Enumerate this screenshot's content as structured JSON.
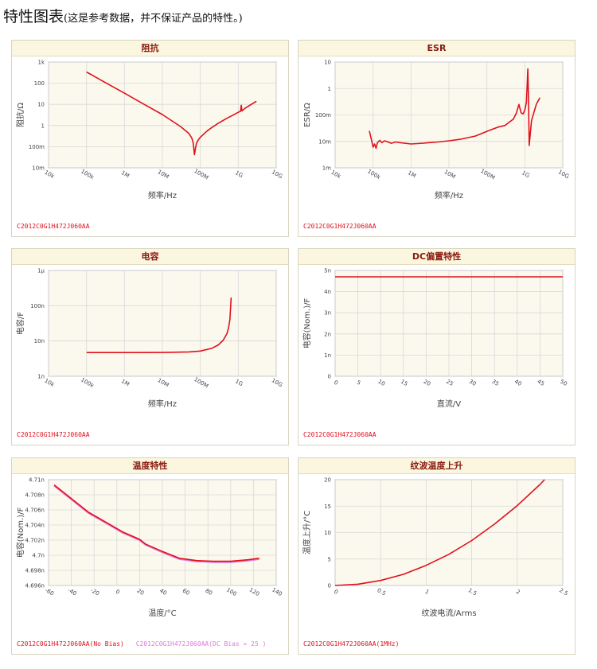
{
  "page": {
    "title": "特性图表",
    "subtitle": "(这是参考数据，并不保证产品的特性。)"
  },
  "colors": {
    "red": "#e0111b",
    "pink": "#e07ad9",
    "grid": "#d8d8d8",
    "plot_bg": "#fbf9ee"
  },
  "chart_data": [
    {
      "type": "line",
      "title": "阻抗",
      "xlabel": "频率/Hz",
      "ylabel": "阻抗/Ω",
      "xscale": "log",
      "yscale": "log",
      "xlim": [
        10000,
        10000000000
      ],
      "ylim": [
        0.01,
        1000
      ],
      "x_ticks": [
        10000,
        100000,
        1000000,
        10000000,
        100000000,
        1000000000,
        10000000000
      ],
      "x_tick_labels": [
        "10k",
        "100k",
        "1M",
        "10M",
        "100M",
        "1G",
        "10G"
      ],
      "y_ticks": [
        0.01,
        0.1,
        1,
        10,
        100,
        1000
      ],
      "y_tick_labels": [
        "10m",
        "100m",
        "1",
        "10",
        "100",
        "1k"
      ],
      "legend": [
        "C2012C0G1H472J060AA"
      ],
      "series": [
        {
          "name": "C2012C0G1H472J060AA",
          "x": [
            100000,
            300000,
            1000000,
            3000000,
            10000000,
            30000000,
            50000000,
            60000000,
            65000000,
            70000000,
            75000000,
            80000000,
            90000000,
            100000000,
            150000000,
            200000000,
            300000000,
            500000000,
            800000000,
            1000000000,
            1150000000,
            1200000000,
            1250000000,
            1300000000,
            1500000000,
            2000000000,
            3000000000
          ],
          "y": [
            340,
            112,
            34,
            11,
            3.3,
            0.9,
            0.42,
            0.25,
            0.15,
            0.042,
            0.09,
            0.15,
            0.22,
            0.28,
            0.55,
            0.8,
            1.3,
            2.2,
            3.4,
            4.2,
            4.7,
            9,
            4.9,
            5.2,
            6.5,
            9,
            14
          ]
        }
      ]
    },
    {
      "type": "line",
      "title": "ESR",
      "xlabel": "频率/Hz",
      "ylabel": "ESR/Ω",
      "xscale": "log",
      "yscale": "log",
      "xlim": [
        10000,
        10000000000
      ],
      "ylim": [
        0.001,
        10
      ],
      "x_ticks": [
        10000,
        100000,
        1000000,
        10000000,
        100000000,
        1000000000,
        10000000000
      ],
      "x_tick_labels": [
        "10k",
        "100k",
        "1M",
        "10M",
        "100M",
        "1G",
        "10G"
      ],
      "y_ticks": [
        0.001,
        0.01,
        0.1,
        1,
        10
      ],
      "y_tick_labels": [
        "1m",
        "10m",
        "100m",
        "1",
        "10"
      ],
      "legend": [
        "C2012C0G1H472J060AA"
      ],
      "series": [
        {
          "name": "C2012C0G1H472J060AA",
          "x": [
            80000,
            90000,
            100000,
            110000,
            120000,
            130000,
            150000,
            170000,
            200000,
            250000,
            300000,
            400000,
            500000,
            700000,
            1000000,
            2000000,
            3000000,
            5000000,
            10000000,
            20000000,
            50000000,
            100000000,
            150000000,
            200000000,
            300000000,
            400000000,
            500000000,
            600000000,
            700000000,
            800000000,
            900000000,
            1000000000,
            1100000000,
            1150000000,
            1200000000,
            1250000000,
            1300000000,
            1500000000,
            2000000000,
            2500000000
          ],
          "y": [
            0.025,
            0.012,
            0.006,
            0.008,
            0.0055,
            0.009,
            0.011,
            0.009,
            0.0105,
            0.0095,
            0.0085,
            0.0095,
            0.009,
            0.0085,
            0.008,
            0.0085,
            0.009,
            0.0095,
            0.0105,
            0.012,
            0.016,
            0.024,
            0.03,
            0.035,
            0.04,
            0.055,
            0.07,
            0.12,
            0.25,
            0.12,
            0.11,
            0.15,
            0.3,
            1.2,
            5.5,
            0.35,
            0.007,
            0.06,
            0.25,
            0.45
          ]
        }
      ]
    },
    {
      "type": "line",
      "title": "电容",
      "xlabel": "频率/Hz",
      "ylabel": "电容/F",
      "xscale": "log",
      "yscale": "log",
      "xlim": [
        10000,
        10000000000
      ],
      "ylim": [
        1e-09,
        1e-06
      ],
      "x_ticks": [
        10000,
        100000,
        1000000,
        10000000,
        100000000,
        1000000000,
        10000000000
      ],
      "x_tick_labels": [
        "10k",
        "100k",
        "1M",
        "10M",
        "100M",
        "1G",
        "10G"
      ],
      "y_ticks": [
        1e-09,
        1e-08,
        1e-07,
        1e-06
      ],
      "y_tick_labels": [
        "1n",
        "10n",
        "100n",
        "1μ"
      ],
      "legend": [
        "C2012C0G1H472J060AA"
      ],
      "series": [
        {
          "name": "C2012C0G1H472J060AA",
          "x": [
            100000,
            1000000,
            10000000,
            50000000,
            100000000,
            200000000,
            300000000,
            400000000,
            500000000,
            550000000,
            600000000,
            650000000
          ],
          "y": [
            4.7e-09,
            4.7e-09,
            4.72e-09,
            4.9e-09,
            5.2e-09,
            6.2e-09,
            7.8e-09,
            1.05e-08,
            1.6e-08,
            2.3e-08,
            4e-08,
            1.7e-07
          ]
        }
      ]
    },
    {
      "type": "line",
      "title": "DC偏置特性",
      "xlabel": "直流/V",
      "ylabel": "电容(Nom.)/F",
      "xlim": [
        0,
        50
      ],
      "ylim": [
        0,
        5e-09
      ],
      "x_ticks": [
        0,
        5,
        10,
        15,
        20,
        25,
        30,
        35,
        40,
        45,
        50
      ],
      "x_tick_labels": [
        "0",
        "5",
        "10",
        "15",
        "20",
        "25",
        "30",
        "35",
        "40",
        "45",
        "50"
      ],
      "y_ticks": [
        0,
        1e-09,
        2e-09,
        3e-09,
        4e-09,
        5e-09
      ],
      "y_tick_labels": [
        "0",
        "1n",
        "2n",
        "3n",
        "4n",
        "5n"
      ],
      "legend": [
        "C2012C0G1H472J060AA"
      ],
      "series": [
        {
          "name": "C2012C0G1H472J060AA",
          "x": [
            0,
            50
          ],
          "y": [
            4.7e-09,
            4.7e-09
          ]
        }
      ]
    },
    {
      "type": "line",
      "title": "温度特性",
      "xlabel": "温度/°C",
      "ylabel": "电容(Nom.)/F",
      "xlim": [
        -60,
        140
      ],
      "ylim": [
        4.696e-09,
        4.71e-09
      ],
      "x_ticks": [
        -60,
        -40,
        -20,
        0,
        20,
        40,
        60,
        80,
        100,
        120,
        140
      ],
      "x_tick_labels": [
        "-60",
        "-40",
        "-20",
        "0",
        "20",
        "40",
        "60",
        "80",
        "100",
        "120",
        "140"
      ],
      "y_ticks": [
        4.696e-09,
        4.698e-09,
        4.7e-09,
        4.702e-09,
        4.704e-09,
        4.706e-09,
        4.708e-09,
        4.71e-09
      ],
      "y_tick_labels": [
        "4.696n",
        "4.698n",
        "4.7n",
        "4.702n",
        "4.704n",
        "4.706n",
        "4.708n",
        "4.71n"
      ],
      "legend": [
        "C2012C0G1H472J060AA(No Bias)",
        "C2012C0G1H472J060AA(DC Bias = 25 )"
      ],
      "series": [
        {
          "name": "C2012C0G1H472J060AA(No Bias)",
          "x": [
            -55,
            -40,
            -25,
            -10,
            5,
            20,
            25,
            40,
            55,
            70,
            85,
            100,
            115,
            125
          ],
          "y": [
            4.7093e-09,
            4.7075e-09,
            4.7057e-09,
            4.7044e-09,
            4.7031e-09,
            4.7021e-09,
            4.7015e-09,
            4.7005e-09,
            4.6996e-09,
            4.6993e-09,
            4.6992e-09,
            4.6992e-09,
            4.6994e-09,
            4.6996e-09
          ]
        },
        {
          "name": "C2012C0G1H472J060AA(DC Bias = 25 )",
          "x": [
            -55,
            -40,
            -25,
            -10,
            5,
            20,
            25,
            40,
            55,
            70,
            85,
            100,
            115,
            125
          ],
          "y": [
            4.7092e-09,
            4.7074e-09,
            4.7056e-09,
            4.7043e-09,
            4.703e-09,
            4.702e-09,
            4.7014e-09,
            4.7004e-09,
            4.6995e-09,
            4.6992e-09,
            4.6991e-09,
            4.6991e-09,
            4.6993e-09,
            4.6995e-09
          ]
        }
      ]
    },
    {
      "type": "line",
      "title": "纹波温度上升",
      "xlabel": "纹波电流/Arms",
      "ylabel": "温度上升/°C",
      "xlim": [
        0,
        2.5
      ],
      "ylim": [
        0,
        20
      ],
      "x_ticks": [
        0,
        0.5,
        1,
        1.5,
        2,
        2.5
      ],
      "x_tick_labels": [
        "0",
        "0.5",
        "1",
        "1.5",
        "2",
        "2.5"
      ],
      "y_ticks": [
        0,
        5,
        10,
        15,
        20
      ],
      "y_tick_labels": [
        "0",
        "5",
        "10",
        "15",
        "20"
      ],
      "legend": [
        "C2012C0G1H472J060AA(1MHz)"
      ],
      "series": [
        {
          "name": "C2012C0G1H472J060AA(1MHz)",
          "x": [
            0,
            0.25,
            0.5,
            0.75,
            1,
            1.25,
            1.5,
            1.75,
            2,
            2.25,
            2.3
          ],
          "y": [
            0,
            0.24,
            0.95,
            2.1,
            3.8,
            5.9,
            8.5,
            11.6,
            15.1,
            19.1,
            20
          ]
        }
      ]
    }
  ]
}
